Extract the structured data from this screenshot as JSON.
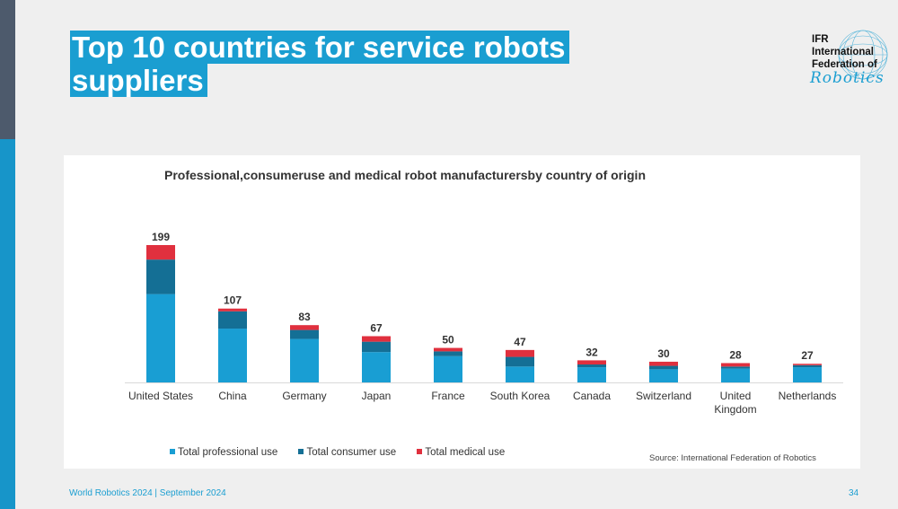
{
  "slide": {
    "title_line1": "Top 10 countries for service robots",
    "title_line2": "suppliers",
    "footer": "World Robotics 2024  | September 2024",
    "page_number": "34"
  },
  "logo": {
    "line1": "IFR",
    "line2": "International",
    "line3": "Federation of",
    "script": "Robotics"
  },
  "colors": {
    "professional": "#199ed3",
    "consumer": "#146f95",
    "medical": "#e0303e",
    "accent": "#1a9ed1"
  },
  "chart_data": {
    "type": "bar",
    "stacked": true,
    "title": "Professional,consumeruse and medical robot manufacturersby country of origin",
    "categories": [
      "United States",
      "China",
      "Germany",
      "Japan",
      "France",
      "South Korea",
      "Canada",
      "Switzerland",
      "United Kingdom",
      "Netherlands"
    ],
    "category_lines": [
      [
        "United States"
      ],
      [
        "China"
      ],
      [
        "Germany"
      ],
      [
        "Japan"
      ],
      [
        "France"
      ],
      [
        "South Korea"
      ],
      [
        "Canada"
      ],
      [
        "Switzerland"
      ],
      [
        "United",
        "Kingdom"
      ],
      [
        "Netherlands"
      ]
    ],
    "series": [
      {
        "name": "Total professional use",
        "values": [
          128,
          78,
          63,
          44,
          38,
          23,
          22,
          19,
          20,
          22
        ]
      },
      {
        "name": "Total consumer use",
        "values": [
          50,
          25,
          13,
          15,
          7,
          14,
          4,
          5,
          3,
          3
        ]
      },
      {
        "name": "Total medical use",
        "values": [
          21,
          4,
          7,
          8,
          5,
          10,
          6,
          6,
          5,
          2
        ]
      }
    ],
    "totals": [
      199,
      107,
      83,
      67,
      50,
      47,
      32,
      30,
      28,
      27
    ],
    "ylim": [
      0,
      199
    ],
    "legend_position": "bottom",
    "grid": false,
    "source": "Source: International Federation of Robotics"
  }
}
